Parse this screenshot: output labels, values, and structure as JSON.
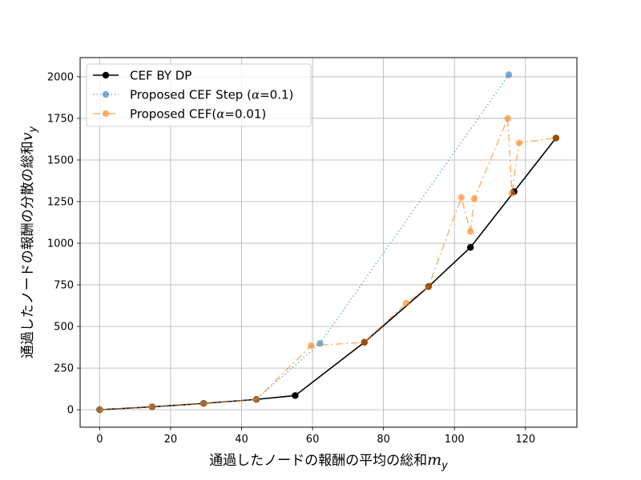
{
  "chart_data": {
    "type": "line",
    "title": "",
    "xlabel": "通過したノードの報酬の平均の総和",
    "xlabel_math": "m",
    "xlabel_sub": "y",
    "ylabel": "通過したノードの報酬の分散の総和",
    "ylabel_math": "v",
    "ylabel_sub": "y",
    "xlim": [
      -5.5,
      134.5
    ],
    "ylim": [
      -105,
      2115
    ],
    "xticks": [
      0,
      20,
      40,
      60,
      80,
      100,
      120
    ],
    "yticks": [
      0,
      250,
      500,
      750,
      1000,
      1250,
      1500,
      1750,
      2000
    ],
    "grid": true,
    "legend_position": "top-left",
    "series": [
      {
        "name": "CEF BY DP",
        "color": "#000000",
        "style": "solid",
        "x": [
          0,
          14.8,
          29.3,
          44.2,
          55.1,
          74.6,
          92.7,
          104.5,
          116.8,
          128.6
        ],
        "y": [
          0,
          17,
          38,
          62,
          85,
          405,
          740,
          975,
          1310,
          1632
        ]
      },
      {
        "name": "Proposed CEF Step (α=0.1)",
        "legend_prefix": "Proposed CEF Step (",
        "legend_alpha": "α",
        "legend_suffix": "=0.1)",
        "color": "#1f77b4",
        "style": "dotted",
        "x": [
          0,
          14.8,
          29.3,
          44.2,
          62.1,
          115.3
        ],
        "y": [
          0,
          17,
          38,
          62,
          398,
          2012
        ]
      },
      {
        "name": "Proposed CEF(α=0.01)",
        "legend_prefix": "Proposed CEF(",
        "legend_alpha": "α",
        "legend_suffix": "=0.01)",
        "color": "#ff7f0e",
        "style": "dashdot",
        "x": [
          0,
          14.8,
          29.3,
          44.2,
          59.6,
          74.6,
          86.4,
          92.7,
          101.9,
          104.5,
          105.6,
          115.0,
          116.2,
          118.2,
          128.6
        ],
        "y": [
          0,
          17,
          38,
          62,
          385,
          405,
          640,
          740,
          1275,
          1070,
          1268,
          1750,
          1300,
          1603,
          1632
        ]
      }
    ]
  }
}
